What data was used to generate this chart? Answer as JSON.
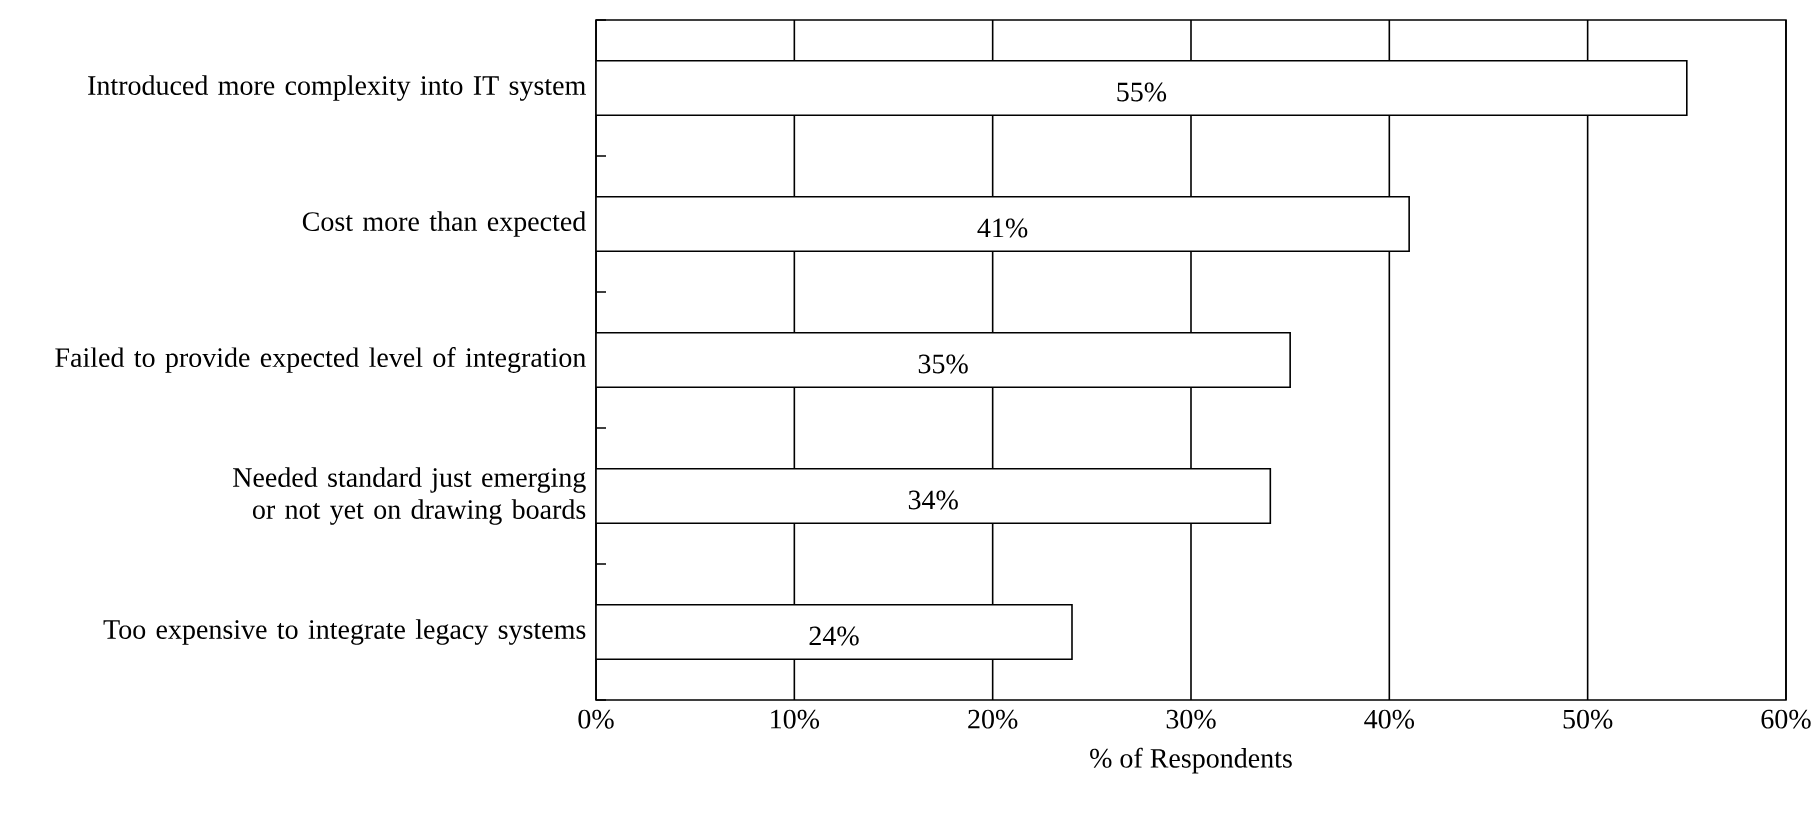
{
  "chart_data": {
    "type": "bar",
    "orientation": "horizontal",
    "categories": [
      "Introduced more complexity into IT system",
      "Cost more than expected",
      "Failed to provide expected level of integration",
      "Needed standard just emerging or not yet on drawing boards",
      "Too expensive to integrate legacy systems"
    ],
    "values": [
      55,
      41,
      35,
      34,
      24
    ],
    "value_labels": [
      "55%",
      "41%",
      "35%",
      "34%",
      "24%"
    ],
    "color": "#ffffff",
    "xlabel": "% of Respondents",
    "xlim": [
      0,
      60
    ],
    "xticks": [
      {
        "value": 0,
        "label": "0%"
      },
      {
        "value": 10,
        "label": "10%"
      },
      {
        "value": 20,
        "label": "20%"
      },
      {
        "value": 30,
        "label": "30%"
      },
      {
        "value": 40,
        "label": "40%"
      },
      {
        "value": 50,
        "label": "50%"
      },
      {
        "value": 60,
        "label": "60%"
      }
    ],
    "grid": "x"
  }
}
